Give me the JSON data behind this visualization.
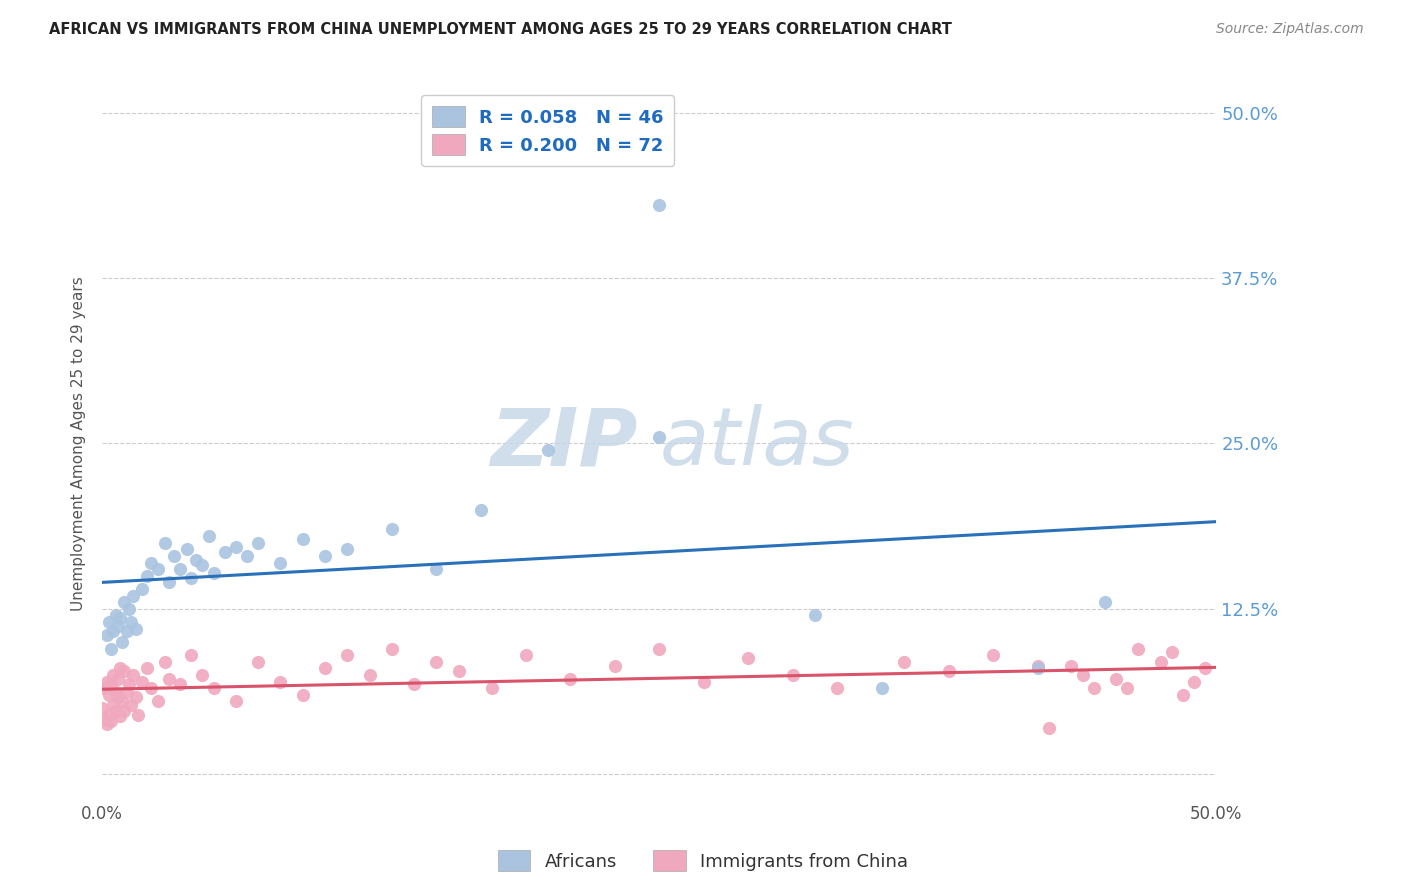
{
  "title": "AFRICAN VS IMMIGRANTS FROM CHINA UNEMPLOYMENT AMONG AGES 25 TO 29 YEARS CORRELATION CHART",
  "source": "Source: ZipAtlas.com",
  "ylabel": "Unemployment Among Ages 25 to 29 years",
  "xlim": [
    0.0,
    0.5
  ],
  "ylim": [
    -0.02,
    0.52
  ],
  "yticks": [
    0.0,
    0.125,
    0.25,
    0.375,
    0.5
  ],
  "ytick_labels": [
    "",
    "12.5%",
    "25.0%",
    "37.5%",
    "50.0%"
  ],
  "legend_label1": "R = 0.058   N = 46",
  "legend_label2": "R = 0.200   N = 72",
  "series1_color": "#aac4e0",
  "series2_color": "#f0a8be",
  "line1_color": "#2971b8",
  "line2_color": "#d9536a",
  "background_color": "#ffffff",
  "africans_x": [
    0.002,
    0.003,
    0.004,
    0.005,
    0.006,
    0.007,
    0.008,
    0.009,
    0.01,
    0.011,
    0.012,
    0.013,
    0.014,
    0.015,
    0.018,
    0.02,
    0.022,
    0.025,
    0.028,
    0.03,
    0.032,
    0.035,
    0.038,
    0.04,
    0.042,
    0.045,
    0.048,
    0.05,
    0.055,
    0.06,
    0.065,
    0.07,
    0.08,
    0.09,
    0.1,
    0.11,
    0.13,
    0.15,
    0.17,
    0.2,
    0.25,
    0.25,
    0.32,
    0.35,
    0.42,
    0.45
  ],
  "africans_y": [
    0.105,
    0.115,
    0.095,
    0.108,
    0.12,
    0.112,
    0.118,
    0.1,
    0.13,
    0.108,
    0.125,
    0.115,
    0.135,
    0.11,
    0.14,
    0.15,
    0.16,
    0.155,
    0.175,
    0.145,
    0.165,
    0.155,
    0.17,
    0.148,
    0.162,
    0.158,
    0.18,
    0.152,
    0.168,
    0.172,
    0.165,
    0.175,
    0.16,
    0.178,
    0.165,
    0.17,
    0.185,
    0.155,
    0.2,
    0.245,
    0.43,
    0.255,
    0.12,
    0.065,
    0.08,
    0.13
  ],
  "china_x": [
    0.0,
    0.001,
    0.001,
    0.002,
    0.002,
    0.003,
    0.003,
    0.004,
    0.004,
    0.005,
    0.005,
    0.006,
    0.006,
    0.007,
    0.007,
    0.008,
    0.008,
    0.009,
    0.01,
    0.01,
    0.011,
    0.012,
    0.013,
    0.014,
    0.015,
    0.016,
    0.018,
    0.02,
    0.022,
    0.025,
    0.028,
    0.03,
    0.035,
    0.04,
    0.045,
    0.05,
    0.06,
    0.07,
    0.08,
    0.09,
    0.1,
    0.11,
    0.12,
    0.13,
    0.14,
    0.15,
    0.16,
    0.175,
    0.19,
    0.21,
    0.23,
    0.25,
    0.27,
    0.29,
    0.31,
    0.33,
    0.36,
    0.38,
    0.4,
    0.42,
    0.44,
    0.46,
    0.48,
    0.495,
    0.49,
    0.485,
    0.475,
    0.465,
    0.455,
    0.445,
    0.435,
    0.425
  ],
  "china_y": [
    0.05,
    0.042,
    0.065,
    0.038,
    0.07,
    0.045,
    0.06,
    0.04,
    0.068,
    0.052,
    0.075,
    0.048,
    0.062,
    0.058,
    0.072,
    0.044,
    0.08,
    0.055,
    0.048,
    0.078,
    0.062,
    0.068,
    0.052,
    0.075,
    0.058,
    0.045,
    0.07,
    0.08,
    0.065,
    0.055,
    0.085,
    0.072,
    0.068,
    0.09,
    0.075,
    0.065,
    0.055,
    0.085,
    0.07,
    0.06,
    0.08,
    0.09,
    0.075,
    0.095,
    0.068,
    0.085,
    0.078,
    0.065,
    0.09,
    0.072,
    0.082,
    0.095,
    0.07,
    0.088,
    0.075,
    0.065,
    0.085,
    0.078,
    0.09,
    0.082,
    0.075,
    0.065,
    0.092,
    0.08,
    0.07,
    0.06,
    0.085,
    0.095,
    0.072,
    0.065,
    0.082,
    0.035
  ]
}
